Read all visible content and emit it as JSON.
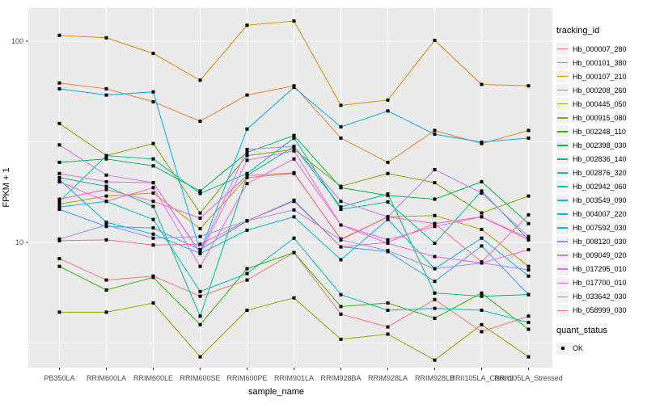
{
  "figure": {
    "y_axis_title": "FPKM + 1",
    "x_axis_title": "sample_name",
    "y_tick_labels": [
      "100",
      "10"
    ],
    "legend_title": "tracking_id",
    "legend2_title": "quant_status",
    "legend2_items": [
      "OK"
    ],
    "colors": {
      "panel_background": "#EBEBEB",
      "grid": "#FFFFFF",
      "tick_label": "#4D4D4D",
      "tick_mark": "#333333",
      "legend_key_background": "#F2F2F2",
      "point": "#000000"
    }
  },
  "chart_data": {
    "type": "line",
    "title": "",
    "xlabel": "sample_name",
    "ylabel": "FPKM + 1",
    "y_scale": "log10",
    "y_major_ticks": [
      100,
      10
    ],
    "y_minor_ticks": [
      31.6,
      3.16
    ],
    "ylim": [
      2.4,
      146
    ],
    "grid": true,
    "legend_position": "right",
    "point_marker": {
      "shape": "square",
      "color": "#000000",
      "legend": "quant_status",
      "label": "OK"
    },
    "categories": [
      "PB350LA",
      "RRIM600LA",
      "RRIM600LE",
      "RRIM600SE",
      "RRIM600PE",
      "RRIM901LA",
      "RRIM928BA",
      "RRIM928LA",
      "RRIM928LB",
      "RRII105LA_Control",
      "RRII105LA_Stressed"
    ],
    "series": [
      {
        "name": "Hb_000007_280",
        "color": "#F8766D",
        "values": [
          8.3,
          6.5,
          6.8,
          5.4,
          6.5,
          8.9,
          4.4,
          3.8,
          5.2,
          3.6,
          4.3
        ]
      },
      {
        "name": "Hb_000101_380",
        "color": "#EA8331",
        "values": [
          62,
          58,
          50,
          40,
          54,
          60,
          33,
          25,
          36,
          31,
          36
        ]
      },
      {
        "name": "Hb_000107_210",
        "color": "#D89000",
        "values": [
          107,
          104,
          87,
          64,
          120,
          126,
          48,
          51,
          101,
          61,
          60
        ]
      },
      {
        "name": "Hb_000208_260",
        "color": "#C09B00",
        "values": [
          15.5,
          17,
          17.6,
          11.7,
          21,
          22,
          10.4,
          13.4,
          13.6,
          11.6,
          7.6
        ]
      },
      {
        "name": "Hb_000445_050",
        "color": "#A3A500",
        "values": [
          4.5,
          4.5,
          5.0,
          2.7,
          4.6,
          5.3,
          3.3,
          3.5,
          2.6,
          3.9,
          2.7
        ]
      },
      {
        "name": "Hb_000915_080",
        "color": "#7CAE00",
        "values": [
          39,
          27,
          31,
          14,
          27,
          29,
          19,
          22,
          19.8,
          14,
          17
        ]
      },
      {
        "name": "Hb_002248_110",
        "color": "#39B600",
        "values": [
          7.6,
          5.8,
          6.7,
          3.9,
          7.4,
          8.9,
          4.8,
          5.0,
          4.2,
          5.6,
          3.7
        ]
      },
      {
        "name": "Hb_002398_030",
        "color": "#00BB4E",
        "values": [
          25,
          26,
          24,
          18,
          28,
          34,
          18.7,
          17.1,
          16.4,
          20,
          12.4
        ]
      },
      {
        "name": "Hb_002836_140",
        "color": "#00BF7D",
        "values": [
          21,
          19,
          15.1,
          4.3,
          21.5,
          30,
          15,
          17.4,
          5.6,
          5.4,
          5.5
        ]
      },
      {
        "name": "Hb_002876_320",
        "color": "#00C1A3",
        "values": [
          16,
          27,
          26,
          17.5,
          22,
          33,
          14.6,
          15.9,
          9.9,
          18,
          10.3
        ]
      },
      {
        "name": "Hb_002942_060",
        "color": "#00BFC4",
        "values": [
          15,
          16,
          13,
          5.7,
          7.0,
          10.5,
          5.5,
          4.6,
          4.7,
          4.6,
          4.0
        ]
      },
      {
        "name": "Hb_003549_090",
        "color": "#00BAE0",
        "values": [
          20.5,
          12.6,
          11,
          8.8,
          11.5,
          13.4,
          8.2,
          13.0,
          7.4,
          10.5,
          6.8
        ]
      },
      {
        "name": "Hb_004007_220",
        "color": "#00B0F6",
        "values": [
          58,
          54,
          56,
          9.0,
          36.6,
          59,
          37.5,
          45,
          34.5,
          31.5,
          33
        ]
      },
      {
        "name": "Hb_007592_030",
        "color": "#35A2FF",
        "values": [
          14.6,
          12,
          11.8,
          9.2,
          12.8,
          16.2,
          9.5,
          9.0,
          6.4,
          9.6,
          5.5
        ]
      },
      {
        "name": "Hb_008120_030",
        "color": "#9590FF",
        "values": [
          10.4,
          12.2,
          10.5,
          10.7,
          12.8,
          14.5,
          10.3,
          9.1,
          7.4,
          7.9,
          7.3
        ]
      },
      {
        "name": "Hb_009049_020",
        "color": "#C77CFF",
        "values": [
          30.5,
          21.6,
          19.8,
          8.9,
          29,
          30,
          16,
          13.4,
          23,
          17.6,
          10.7
        ]
      },
      {
        "name": "Hb_017295_010",
        "color": "#E76BF3",
        "values": [
          22,
          20,
          19.8,
          8.8,
          25.6,
          28.5,
          12.2,
          10.3,
          12.0,
          13.4,
          10.5
        ]
      },
      {
        "name": "Hb_017700_010",
        "color": "#FA62DB",
        "values": [
          20,
          16,
          18.7,
          7.6,
          19.6,
          26,
          12.2,
          9.9,
          8.5,
          7.9,
          9.2
        ]
      },
      {
        "name": "Hb_033642_030",
        "color": "#FF62BC",
        "values": [
          16.4,
          18.3,
          16,
          13.2,
          21.5,
          22.2,
          10.3,
          13.4,
          12.4,
          13.4,
          10.3
        ]
      },
      {
        "name": "Hb_058999_030",
        "color": "#FF6A98",
        "values": [
          10.2,
          10.3,
          9.7,
          9.8,
          12.8,
          16,
          9.5,
          10,
          12.4,
          8.0,
          13.7
        ]
      }
    ]
  }
}
